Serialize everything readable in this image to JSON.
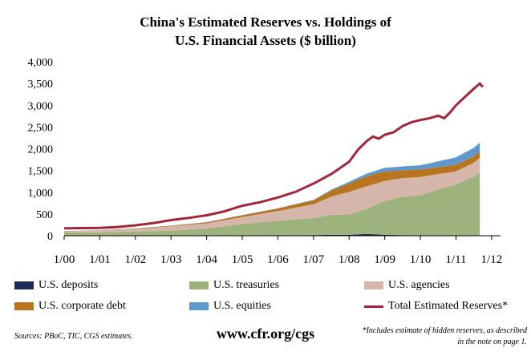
{
  "title_line1": "China's Estimated Reserves vs. Holdings of",
  "title_line2": "U.S. Financial Assets ($ billion)",
  "source": "Sources: PBoC, TIC, CGS estimates.",
  "url": "www.cfr.org/cgs",
  "note": "*Includes estimate of hidden reserves, as described in the note on page 1.",
  "colors": {
    "deposits": "#1c2a5a",
    "treasuries": "#9db27c",
    "agencies": "#d6b6aa",
    "corporate": "#b8741e",
    "equities": "#5e98cf",
    "reserves": "#a3263a"
  },
  "legend": [
    {
      "key": "deposits",
      "label": "U.S. deposits",
      "kind": "swatch"
    },
    {
      "key": "treasuries",
      "label": "U.S. treasuries",
      "kind": "swatch"
    },
    {
      "key": "agencies",
      "label": "U.S. agencies",
      "kind": "swatch"
    },
    {
      "key": "corporate",
      "label": "U.S. corporate debt",
      "kind": "swatch"
    },
    {
      "key": "equities",
      "label": "U.S. equities",
      "kind": "swatch"
    },
    {
      "key": "reserves",
      "label": "Total Estimated Reserves*",
      "kind": "line"
    }
  ],
  "chart_data": {
    "type": "area",
    "title": "China's Estimated Reserves vs. Holdings of U.S. Financial Assets ($ billion)",
    "ylim": [
      0,
      4000
    ],
    "yticks": [
      0,
      500,
      1000,
      1500,
      2000,
      2500,
      3000,
      3500,
      4000
    ],
    "ytick_labels": [
      "0",
      "500",
      "1,000",
      "1,500",
      "2,000",
      "2,500",
      "3,000",
      "3,500",
      "4,000"
    ],
    "xlim": [
      2000,
      2012.25
    ],
    "xticks": [
      2000,
      2001,
      2002,
      2003,
      2004,
      2005,
      2006,
      2007,
      2008,
      2009,
      2010,
      2011,
      2012
    ],
    "xtick_labels": [
      "1/00",
      "1/01",
      "1/02",
      "1/03",
      "1/04",
      "1/05",
      "1/06",
      "1/07",
      "1/08",
      "1/09",
      "1/10",
      "1/11",
      "1/12"
    ],
    "x": [
      2000,
      2001,
      2002,
      2003,
      2004,
      2005,
      2006,
      2007,
      2007.5,
      2008,
      2008.5,
      2009,
      2009.5,
      2010,
      2010.5,
      2011,
      2011.5,
      2011.67
    ],
    "series": [
      {
        "key": "deposits",
        "name": "U.S. deposits",
        "values": [
          5,
          5,
          5,
          5,
          5,
          10,
          15,
          15,
          20,
          20,
          40,
          20,
          15,
          10,
          10,
          10,
          10,
          10
        ]
      },
      {
        "key": "treasuries",
        "name": "U.S. treasuries",
        "values": [
          70,
          75,
          90,
          110,
          160,
          260,
          330,
          390,
          460,
          470,
          580,
          780,
          880,
          920,
          1050,
          1170,
          1350,
          1450
        ]
      },
      {
        "key": "agencies",
        "name": "U.S. agencies",
        "values": [
          25,
          40,
          60,
          100,
          120,
          160,
          220,
          320,
          420,
          520,
          520,
          460,
          430,
          420,
          360,
          300,
          320,
          330
        ]
      },
      {
        "key": "corporate",
        "name": "U.S. corporate debt",
        "values": [
          5,
          5,
          10,
          15,
          25,
          40,
          60,
          90,
          140,
          190,
          230,
          220,
          180,
          170,
          160,
          150,
          150,
          150
        ]
      },
      {
        "key": "equities",
        "name": "U.S. equities",
        "values": [
          2,
          2,
          2,
          3,
          3,
          5,
          7,
          10,
          20,
          40,
          60,
          80,
          90,
          100,
          130,
          170,
          190,
          200
        ]
      }
    ],
    "line": {
      "key": "reserves",
      "name": "Total Estimated Reserves*",
      "x": [
        2000,
        2001,
        2001.5,
        2002,
        2002.5,
        2003,
        2003.5,
        2004,
        2004.5,
        2005,
        2005.5,
        2006,
        2006.5,
        2007,
        2007.5,
        2008,
        2008.25,
        2008.5,
        2008.67,
        2008.83,
        2009,
        2009.25,
        2009.5,
        2009.75,
        2010,
        2010.25,
        2010.5,
        2010.67,
        2010.83,
        2011,
        2011.25,
        2011.5,
        2011.67,
        2011.75
      ],
      "values": [
        170,
        180,
        200,
        240,
        290,
        360,
        410,
        470,
        560,
        690,
        770,
        880,
        1010,
        1200,
        1420,
        1700,
        1980,
        2180,
        2280,
        2230,
        2320,
        2380,
        2520,
        2610,
        2660,
        2700,
        2760,
        2700,
        2830,
        3000,
        3190,
        3380,
        3500,
        3420
      ]
    }
  }
}
